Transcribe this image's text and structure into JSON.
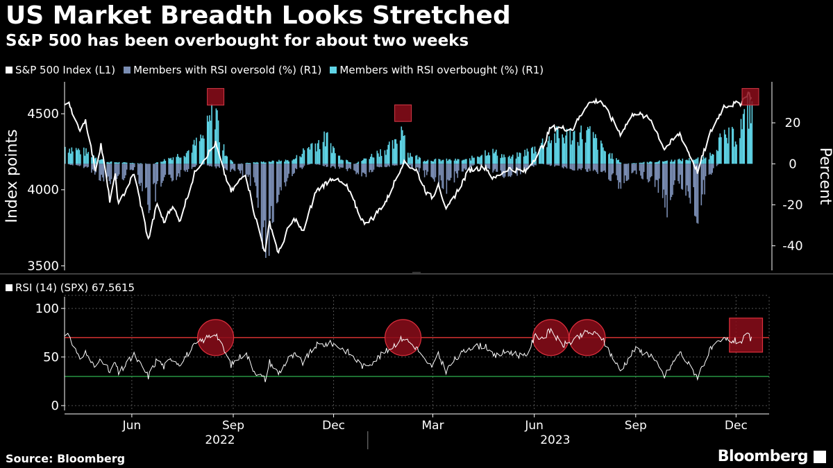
{
  "header": {
    "title": "US Market Breadth Looks Stretched",
    "subtitle": "S&P 500 has been overbought for about two weeks"
  },
  "footer": {
    "source": "Source: Bloomberg",
    "brand": "Bloomberg"
  },
  "colors": {
    "index_line": "#ffffff",
    "oversold": "#7a8db3",
    "overbought": "#5fd4e6",
    "rsi_upper": "#ff3b3b",
    "rsi_lower": "#34c759",
    "highlight": "#8b0d1a"
  },
  "chart_data": [
    {
      "type": "line",
      "title": "US Market Breadth Looks Stretched",
      "legend": [
        {
          "label": "S&P 500 Index (L1)",
          "color": "#ffffff"
        },
        {
          "label": "Members with RSI oversold (%) (R1)",
          "color": "#7a8db3"
        },
        {
          "label": "Members with RSI overbought (%) (R1)",
          "color": "#5fd4e6"
        }
      ],
      "ylabel_left": "Index points",
      "ylabel_right": "Percent",
      "left_axis": {
        "ticks": [
          "4500",
          "4000",
          "3500"
        ],
        "tick_values": [
          4500,
          4000,
          3500
        ],
        "ylim": [
          3470,
          4710
        ]
      },
      "right_axis": {
        "ticks": [
          "20",
          "0",
          "-20",
          "-40"
        ],
        "tick_values": [
          20,
          0,
          -20,
          -40
        ],
        "ylim": [
          -52,
          40
        ]
      },
      "x_range": [
        "2022-04-01",
        "2023-12-31"
      ],
      "sp500_keypoints": [
        [
          "2022-04-01",
          4545
        ],
        [
          "2022-04-05",
          4580
        ],
        [
          "2022-04-14",
          4390
        ],
        [
          "2022-04-20",
          4460
        ],
        [
          "2022-04-29",
          4130
        ],
        [
          "2022-05-04",
          4300
        ],
        [
          "2022-05-12",
          3930
        ],
        [
          "2022-05-17",
          4090
        ],
        [
          "2022-05-20",
          3900
        ],
        [
          "2022-06-03",
          4110
        ],
        [
          "2022-06-16",
          3670
        ],
        [
          "2022-06-24",
          3910
        ],
        [
          "2022-06-30",
          3785
        ],
        [
          "2022-07-08",
          3900
        ],
        [
          "2022-07-14",
          3790
        ],
        [
          "2022-07-29",
          4130
        ],
        [
          "2022-08-16",
          4305
        ],
        [
          "2022-08-23",
          4130
        ],
        [
          "2022-08-30",
          3985
        ],
        [
          "2022-09-12",
          4110
        ],
        [
          "2022-09-20",
          3850
        ],
        [
          "2022-09-30",
          3585
        ],
        [
          "2022-10-04",
          3790
        ],
        [
          "2022-10-12",
          3580
        ],
        [
          "2022-10-21",
          3750
        ],
        [
          "2022-10-27",
          3810
        ],
        [
          "2022-11-03",
          3720
        ],
        [
          "2022-11-15",
          3990
        ],
        [
          "2022-11-30",
          4080
        ],
        [
          "2022-12-13",
          4020
        ],
        [
          "2022-12-28",
          3785
        ],
        [
          "2023-01-05",
          3810
        ],
        [
          "2023-01-18",
          3930
        ],
        [
          "2023-02-02",
          4180
        ],
        [
          "2023-02-14",
          4130
        ],
        [
          "2023-02-24",
          3970
        ],
        [
          "2023-03-01",
          3950
        ],
        [
          "2023-03-06",
          4050
        ],
        [
          "2023-03-13",
          3860
        ],
        [
          "2023-03-20",
          3950
        ],
        [
          "2023-04-03",
          4130
        ],
        [
          "2023-04-18",
          4150
        ],
        [
          "2023-04-25",
          4070
        ],
        [
          "2023-05-08",
          4140
        ],
        [
          "2023-05-24",
          4120
        ],
        [
          "2023-06-09",
          4290
        ],
        [
          "2023-06-16",
          4410
        ],
        [
          "2023-07-06",
          4400
        ],
        [
          "2023-07-19",
          4565
        ],
        [
          "2023-07-31",
          4590
        ],
        [
          "2023-08-18",
          4370
        ],
        [
          "2023-08-31",
          4510
        ],
        [
          "2023-09-15",
          4460
        ],
        [
          "2023-09-27",
          4270
        ],
        [
          "2023-10-11",
          4370
        ],
        [
          "2023-10-27",
          4120
        ],
        [
          "2023-11-08",
          4380
        ],
        [
          "2023-11-20",
          4550
        ],
        [
          "2023-12-05",
          4570
        ],
        [
          "2023-12-12",
          4640
        ],
        [
          "2023-12-15",
          4600
        ]
      ],
      "overbought_keypoints": [
        [
          "2022-04-01",
          9
        ],
        [
          "2022-04-20",
          6
        ],
        [
          "2022-05-10",
          1
        ],
        [
          "2022-06-20",
          0
        ],
        [
          "2022-07-20",
          6
        ],
        [
          "2022-08-05",
          14
        ],
        [
          "2022-08-16",
          30
        ],
        [
          "2022-08-20",
          10
        ],
        [
          "2022-09-01",
          0
        ],
        [
          "2022-10-25",
          2
        ],
        [
          "2022-11-10",
          10
        ],
        [
          "2022-11-25",
          13
        ],
        [
          "2022-12-05",
          4
        ],
        [
          "2022-12-20",
          0
        ],
        [
          "2023-01-10",
          6
        ],
        [
          "2023-01-26",
          10
        ],
        [
          "2023-02-02",
          22
        ],
        [
          "2023-02-05",
          6
        ],
        [
          "2023-02-20",
          2
        ],
        [
          "2023-04-01",
          2
        ],
        [
          "2023-04-20",
          7
        ],
        [
          "2023-05-10",
          3
        ],
        [
          "2023-06-01",
          8
        ],
        [
          "2023-06-15",
          14
        ],
        [
          "2023-07-20",
          16
        ],
        [
          "2023-08-05",
          6
        ],
        [
          "2023-08-20",
          0
        ],
        [
          "2023-11-05",
          3
        ],
        [
          "2023-11-15",
          12
        ],
        [
          "2023-12-01",
          15
        ],
        [
          "2023-12-14",
          30
        ],
        [
          "2023-12-15",
          32
        ]
      ],
      "oversold_keypoints": [
        [
          "2022-04-01",
          0
        ],
        [
          "2022-04-22",
          -2
        ],
        [
          "2022-05-10",
          -10
        ],
        [
          "2022-05-20",
          -8
        ],
        [
          "2022-06-03",
          -2
        ],
        [
          "2022-06-16",
          -20
        ],
        [
          "2022-06-30",
          -10
        ],
        [
          "2022-07-15",
          -5
        ],
        [
          "2022-08-01",
          0
        ],
        [
          "2022-09-05",
          -4
        ],
        [
          "2022-09-20",
          -12
        ],
        [
          "2022-09-30",
          -42
        ],
        [
          "2022-10-12",
          -15
        ],
        [
          "2022-10-25",
          -4
        ],
        [
          "2022-11-10",
          0
        ],
        [
          "2022-12-15",
          -3
        ],
        [
          "2022-12-28",
          -6
        ],
        [
          "2023-01-10",
          -2
        ],
        [
          "2023-02-05",
          0
        ],
        [
          "2023-02-24",
          -6
        ],
        [
          "2023-03-13",
          -12
        ],
        [
          "2023-03-25",
          -4
        ],
        [
          "2023-04-10",
          0
        ],
        [
          "2023-05-05",
          -6
        ],
        [
          "2023-05-20",
          -4
        ],
        [
          "2023-06-05",
          0
        ],
        [
          "2023-08-05",
          -5
        ],
        [
          "2023-08-18",
          -12
        ],
        [
          "2023-09-01",
          -4
        ],
        [
          "2023-09-20",
          -10
        ],
        [
          "2023-09-28",
          -22
        ],
        [
          "2023-10-10",
          -8
        ],
        [
          "2023-10-27",
          -24
        ],
        [
          "2023-11-05",
          -6
        ],
        [
          "2023-11-15",
          0
        ],
        [
          "2023-12-15",
          0
        ]
      ],
      "highlights": [
        "2022-08-16",
        "2023-02-02",
        "2023-12-14"
      ]
    },
    {
      "type": "line",
      "title": "RSI (14) (SPX) 67.5615",
      "legend_label": "RSI (14) (SPX) 67.5615",
      "ticks": [
        "100",
        "50",
        "0"
      ],
      "tick_values": [
        100,
        50,
        0
      ],
      "ylim": [
        -5,
        112
      ],
      "upper_level": 70,
      "lower_level": 30,
      "rsi_keypoints": [
        [
          "2022-04-01",
          72
        ],
        [
          "2022-04-05",
          74
        ],
        [
          "2022-04-14",
          48
        ],
        [
          "2022-04-20",
          55
        ],
        [
          "2022-04-29",
          38
        ],
        [
          "2022-05-04",
          50
        ],
        [
          "2022-05-12",
          34
        ],
        [
          "2022-05-17",
          44
        ],
        [
          "2022-05-20",
          33
        ],
        [
          "2022-06-03",
          52
        ],
        [
          "2022-06-16",
          30
        ],
        [
          "2022-06-24",
          48
        ],
        [
          "2022-06-30",
          40
        ],
        [
          "2022-07-08",
          49
        ],
        [
          "2022-07-14",
          43
        ],
        [
          "2022-07-29",
          63
        ],
        [
          "2022-08-16",
          75
        ],
        [
          "2022-08-23",
          58
        ],
        [
          "2022-08-30",
          42
        ],
        [
          "2022-09-12",
          55
        ],
        [
          "2022-09-20",
          36
        ],
        [
          "2022-09-30",
          27
        ],
        [
          "2022-10-04",
          45
        ],
        [
          "2022-10-12",
          33
        ],
        [
          "2022-10-21",
          48
        ],
        [
          "2022-10-27",
          52
        ],
        [
          "2022-11-03",
          44
        ],
        [
          "2022-11-15",
          62
        ],
        [
          "2022-11-30",
          64
        ],
        [
          "2022-12-13",
          56
        ],
        [
          "2022-12-28",
          40
        ],
        [
          "2023-01-05",
          45
        ],
        [
          "2023-01-18",
          56
        ],
        [
          "2023-02-02",
          70
        ],
        [
          "2023-02-14",
          60
        ],
        [
          "2023-02-24",
          42
        ],
        [
          "2023-03-01",
          41
        ],
        [
          "2023-03-06",
          52
        ],
        [
          "2023-03-13",
          36
        ],
        [
          "2023-03-20",
          46
        ],
        [
          "2023-04-03",
          60
        ],
        [
          "2023-04-18",
          62
        ],
        [
          "2023-04-25",
          50
        ],
        [
          "2023-05-08",
          56
        ],
        [
          "2023-05-24",
          50
        ],
        [
          "2023-06-02",
          72
        ],
        [
          "2023-06-09",
          70
        ],
        [
          "2023-06-16",
          78
        ],
        [
          "2023-06-26",
          62
        ],
        [
          "2023-07-06",
          66
        ],
        [
          "2023-07-19",
          76
        ],
        [
          "2023-07-31",
          72
        ],
        [
          "2023-08-18",
          36
        ],
        [
          "2023-08-31",
          58
        ],
        [
          "2023-09-15",
          52
        ],
        [
          "2023-09-27",
          30
        ],
        [
          "2023-10-11",
          55
        ],
        [
          "2023-10-27",
          30
        ],
        [
          "2023-11-08",
          58
        ],
        [
          "2023-11-20",
          68
        ],
        [
          "2023-12-05",
          66
        ],
        [
          "2023-12-12",
          72
        ],
        [
          "2023-12-15",
          67.56
        ]
      ],
      "circles": [
        "2022-08-16",
        "2023-02-02",
        "2023-06-16",
        "2023-07-19"
      ],
      "box_range": [
        "2023-11-25",
        "2023-12-25"
      ]
    }
  ],
  "x_axis": {
    "month_ticks": [
      {
        "label": "Jun",
        "date": "2022-06-01"
      },
      {
        "label": "Sep",
        "date": "2022-09-01"
      },
      {
        "label": "Dec",
        "date": "2022-12-01"
      },
      {
        "label": "Mar",
        "date": "2023-03-01"
      },
      {
        "label": "Jun",
        "date": "2023-06-01"
      },
      {
        "label": "Sep",
        "date": "2023-09-01"
      },
      {
        "label": "Dec",
        "date": "2023-12-01"
      }
    ],
    "years": [
      {
        "label": "2022",
        "date": "2022-08-20"
      },
      {
        "label": "2023",
        "date": "2023-06-20"
      }
    ]
  }
}
